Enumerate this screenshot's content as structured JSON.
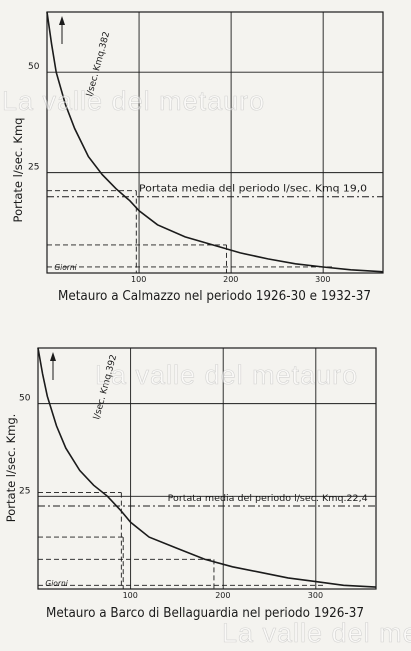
{
  "watermark": "La valle del metauro",
  "chart_data": [
    {
      "type": "line",
      "title": "Metauro a Calmazzo nel periodo 1926-30 e 1932-37",
      "xlabel": "Giorni",
      "ylabel": "Portate l/sec. Kmq",
      "xlim": [
        0,
        365
      ],
      "ylim": [
        0,
        65
      ],
      "x_ticks": [
        100,
        200,
        300
      ],
      "y_ticks": [
        25,
        50
      ],
      "grid": true,
      "curve_label": "l/sec. Kmq.382",
      "mean_label": "Portata media del periodo l/sec. Kmq 19,0",
      "mean_value": 19.0,
      "series": [
        {
          "x": [
            0,
            5,
            10,
            20,
            30,
            45,
            60,
            75,
            90,
            100,
            120,
            150,
            180,
            210,
            240,
            270,
            300,
            330,
            365
          ],
          "y": [
            65,
            57,
            50,
            42,
            36,
            29,
            24.5,
            21,
            18,
            15.5,
            12,
            9,
            7,
            5,
            3.5,
            2.3,
            1.5,
            0.8,
            0.3
          ]
        }
      ],
      "references": [
        {
          "x": 97,
          "y": 20.5
        },
        {
          "x": 195,
          "y": 7
        }
      ],
      "bottom_reference_y": 1.5
    },
    {
      "type": "line",
      "title": "Metauro a Barco di Bellaguardia nel periodo 1926-37",
      "xlabel": "Giorni",
      "ylabel": "Portate l/sec. Kmg.",
      "xlim": [
        0,
        365
      ],
      "ylim": [
        0,
        65
      ],
      "x_ticks": [
        100,
        200,
        300
      ],
      "y_ticks": [
        25,
        50
      ],
      "grid": true,
      "curve_label": "l/sec. Kmq.392",
      "mean_label": "Portata media del periodo l/sec. Kmq.22,4",
      "mean_value": 22.4,
      "series": [
        {
          "x": [
            0,
            5,
            10,
            20,
            30,
            45,
            60,
            75,
            90,
            100,
            120,
            150,
            180,
            210,
            240,
            270,
            300,
            330,
            365
          ],
          "y": [
            65,
            58,
            52,
            44,
            38,
            32,
            28,
            25,
            21,
            18,
            14,
            11,
            8,
            6,
            4.5,
            3,
            2,
            1,
            0.5
          ]
        }
      ],
      "references": [
        {
          "x": 90,
          "y": 26
        },
        {
          "x": 92,
          "y": 14
        },
        {
          "x": 190,
          "y": 8
        }
      ],
      "bottom_reference_y": 1
    }
  ]
}
